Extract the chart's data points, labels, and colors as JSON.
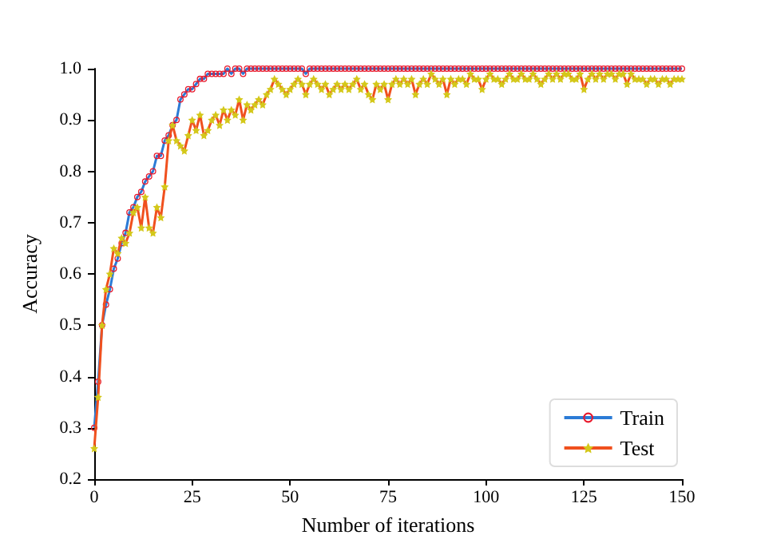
{
  "chart_data": {
    "type": "line",
    "xlabel": "Number of iterations",
    "ylabel": "Accuracy",
    "x": [
      0,
      1,
      2,
      3,
      4,
      5,
      6,
      7,
      8,
      9,
      10,
      11,
      12,
      13,
      14,
      15,
      16,
      17,
      18,
      19,
      20,
      21,
      22,
      23,
      24,
      25,
      26,
      27,
      28,
      29,
      30,
      31,
      32,
      33,
      34,
      35,
      36,
      37,
      38,
      39,
      40,
      41,
      42,
      43,
      44,
      45,
      46,
      47,
      48,
      49,
      50,
      51,
      52,
      53,
      54,
      55,
      56,
      57,
      58,
      59,
      60,
      61,
      62,
      63,
      64,
      65,
      66,
      67,
      68,
      69,
      70,
      71,
      72,
      73,
      74,
      75,
      76,
      77,
      78,
      79,
      80,
      81,
      82,
      83,
      84,
      85,
      86,
      87,
      88,
      89,
      90,
      91,
      92,
      93,
      94,
      95,
      96,
      97,
      98,
      99,
      100,
      101,
      102,
      103,
      104,
      105,
      106,
      107,
      108,
      109,
      110,
      111,
      112,
      113,
      114,
      115,
      116,
      117,
      118,
      119,
      120,
      121,
      122,
      123,
      124,
      125,
      126,
      127,
      128,
      129,
      130,
      131,
      132,
      133,
      134,
      135,
      136,
      137,
      138,
      139,
      140,
      141,
      142,
      143,
      144,
      145,
      146,
      147,
      148,
      149,
      150
    ],
    "series": [
      {
        "name": "Train",
        "color": "#2b7bd6",
        "marker": "circle",
        "values": [
          0.3,
          0.39,
          0.5,
          0.54,
          0.57,
          0.61,
          0.63,
          0.66,
          0.68,
          0.72,
          0.73,
          0.75,
          0.76,
          0.78,
          0.79,
          0.8,
          0.83,
          0.83,
          0.86,
          0.87,
          0.89,
          0.9,
          0.94,
          0.95,
          0.96,
          0.96,
          0.97,
          0.98,
          0.98,
          0.99,
          0.99,
          0.99,
          0.99,
          0.99,
          1.0,
          0.99,
          1.0,
          1.0,
          0.99,
          1.0,
          1.0,
          1.0,
          1.0,
          1.0,
          1.0,
          1.0,
          1.0,
          1.0,
          1.0,
          1.0,
          1.0,
          1.0,
          1.0,
          1.0,
          0.99,
          1.0,
          1.0,
          1.0,
          1.0,
          1.0,
          1.0,
          1.0,
          1.0,
          1.0,
          1.0,
          1.0,
          1.0,
          1.0,
          1.0,
          1.0,
          1.0,
          1.0,
          1.0,
          1.0,
          1.0,
          1.0,
          1.0,
          1.0,
          1.0,
          1.0,
          1.0,
          1.0,
          1.0,
          1.0,
          1.0,
          1.0,
          1.0,
          1.0,
          1.0,
          1.0,
          1.0,
          1.0,
          1.0,
          1.0,
          1.0,
          1.0,
          1.0,
          1.0,
          1.0,
          1.0,
          1.0,
          1.0,
          1.0,
          1.0,
          1.0,
          1.0,
          1.0,
          1.0,
          1.0,
          1.0,
          1.0,
          1.0,
          1.0,
          1.0,
          1.0,
          1.0,
          1.0,
          1.0,
          1.0,
          1.0,
          1.0,
          1.0,
          1.0,
          1.0,
          1.0,
          1.0,
          1.0,
          1.0,
          1.0,
          1.0,
          1.0,
          1.0,
          1.0,
          1.0,
          1.0,
          1.0,
          1.0,
          1.0,
          1.0,
          1.0,
          1.0,
          1.0,
          1.0,
          1.0,
          1.0,
          1.0,
          1.0,
          1.0,
          1.0,
          1.0,
          1.0
        ]
      },
      {
        "name": "Test",
        "color": "#f0501e",
        "marker": "star",
        "values": [
          0.26,
          0.36,
          0.5,
          0.57,
          0.6,
          0.65,
          0.64,
          0.67,
          0.66,
          0.68,
          0.72,
          0.73,
          0.69,
          0.75,
          0.69,
          0.68,
          0.73,
          0.71,
          0.77,
          0.86,
          0.89,
          0.86,
          0.85,
          0.84,
          0.87,
          0.9,
          0.88,
          0.91,
          0.87,
          0.88,
          0.9,
          0.91,
          0.89,
          0.92,
          0.9,
          0.92,
          0.91,
          0.94,
          0.9,
          0.93,
          0.92,
          0.93,
          0.94,
          0.93,
          0.95,
          0.96,
          0.98,
          0.97,
          0.96,
          0.95,
          0.96,
          0.97,
          0.98,
          0.97,
          0.95,
          0.97,
          0.98,
          0.97,
          0.96,
          0.97,
          0.95,
          0.96,
          0.97,
          0.96,
          0.97,
          0.96,
          0.97,
          0.98,
          0.96,
          0.97,
          0.95,
          0.94,
          0.97,
          0.96,
          0.97,
          0.94,
          0.97,
          0.98,
          0.97,
          0.98,
          0.97,
          0.98,
          0.95,
          0.97,
          0.98,
          0.97,
          0.99,
          0.98,
          0.97,
          0.98,
          0.95,
          0.98,
          0.97,
          0.98,
          0.98,
          0.97,
          0.99,
          0.98,
          0.98,
          0.96,
          0.98,
          0.99,
          0.98,
          0.98,
          0.97,
          0.98,
          0.99,
          0.98,
          0.98,
          0.99,
          0.98,
          0.98,
          0.99,
          0.98,
          0.97,
          0.98,
          0.99,
          0.98,
          0.99,
          0.98,
          0.99,
          0.99,
          0.98,
          0.98,
          0.99,
          0.96,
          0.98,
          0.99,
          0.98,
          0.99,
          0.98,
          0.99,
          0.99,
          0.98,
          0.99,
          0.99,
          0.97,
          0.99,
          0.98,
          0.98,
          0.98,
          0.97,
          0.98,
          0.98,
          0.97,
          0.98,
          0.98,
          0.97,
          0.98,
          0.98,
          0.98
        ]
      }
    ],
    "xlim": [
      0,
      150
    ],
    "xticks": [
      0,
      25,
      50,
      75,
      100,
      125,
      150
    ],
    "ylim": [
      0.2,
      1.0
    ],
    "yticks": [
      0.2,
      0.3,
      0.4,
      0.5,
      0.6,
      0.7,
      0.8,
      0.9,
      {
        "value": 1.0,
        "label": "1.0"
      }
    ],
    "grid": false,
    "legend": "bottom right",
    "line_style": "solid"
  }
}
